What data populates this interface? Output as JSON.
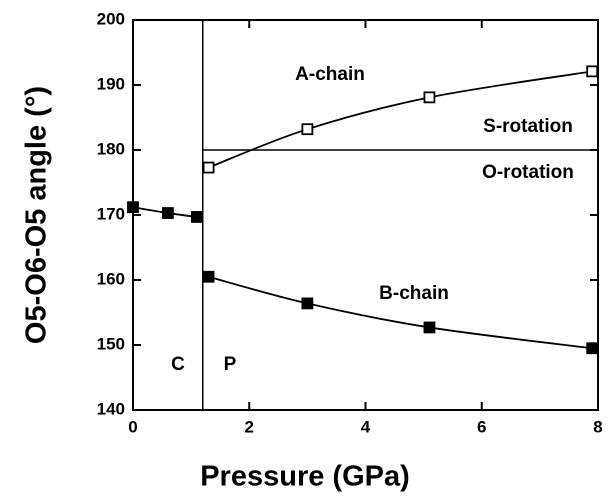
{
  "chart_data": {
    "type": "scatter",
    "xlabel": "Pressure (GPa)",
    "ylabel": "O5-O6-O5 angle (°)",
    "xlim": [
      0,
      8
    ],
    "ylim": [
      140,
      200
    ],
    "xticks": [
      0,
      2,
      4,
      6,
      8
    ],
    "yticks": [
      140,
      150,
      160,
      170,
      180,
      190,
      200
    ],
    "series": [
      {
        "name": "A-chain",
        "color": "#000000",
        "marker": "open-square",
        "line": true,
        "x": [
          1.3,
          3.0,
          5.1,
          7.9
        ],
        "values": [
          177.3,
          183.2,
          188.1,
          192.1
        ]
      },
      {
        "name": "B-chain",
        "color": "#000000",
        "marker": "filled-square",
        "line": true,
        "x": [
          1.3,
          3.0,
          5.1,
          7.9
        ],
        "values": [
          160.5,
          156.4,
          152.7,
          149.5
        ]
      },
      {
        "name": "C",
        "color": "#000000",
        "marker": "filled-square",
        "line": true,
        "x": [
          0,
          0.6,
          1.1
        ],
        "values": [
          171.2,
          170.3,
          169.7
        ]
      }
    ],
    "reference_lines": {
      "vertical": 1.2,
      "horizontal": 180
    },
    "annotations": [
      "A-chain",
      "S-rotation",
      "O-rotation",
      "B-chain",
      "C",
      "P"
    ]
  }
}
